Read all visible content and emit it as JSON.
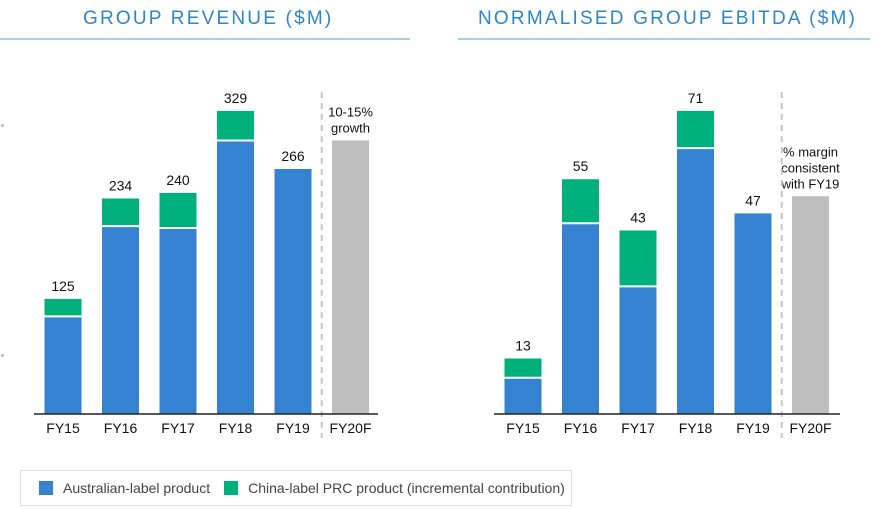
{
  "colors": {
    "australian": "#3482d0",
    "china": "#00b07a",
    "forecast": "#bebebe",
    "title": "#2e86c8",
    "axis": "#222222",
    "divider": "#c8c8c8"
  },
  "legend": {
    "items": [
      {
        "label": "Australian-label product",
        "color": "#3482d0"
      },
      {
        "label": "China-label PRC product (incremental contribution)",
        "color": "#00b07a"
      }
    ]
  },
  "chart_data": [
    {
      "type": "bar",
      "stacked": true,
      "title": "GROUP REVENUE ($M)",
      "categories": [
        "FY15",
        "FY16",
        "FY17",
        "FY18",
        "FY19",
        "FY20F"
      ],
      "series": [
        {
          "name": "Australian-label product",
          "values": [
            106,
            204,
            202,
            297,
            266,
            null
          ]
        },
        {
          "name": "China-label PRC product (incremental contribution)",
          "values": [
            19,
            30,
            38,
            32,
            0,
            null
          ]
        }
      ],
      "totals": [
        125,
        234,
        240,
        329,
        266,
        null
      ],
      "total_labels": [
        "125",
        "234",
        "240",
        "329",
        "266",
        ""
      ],
      "forecast": {
        "category": "FY20F",
        "value": 297,
        "annotation": [
          "10-15%",
          "growth"
        ]
      },
      "ylim": [
        0,
        380
      ],
      "grid": false
    },
    {
      "type": "bar",
      "stacked": true,
      "title": "NORMALISED GROUP EBITDA ($M)",
      "categories": [
        "FY15",
        "FY16",
        "FY17",
        "FY18",
        "FY19",
        "FY20F"
      ],
      "series": [
        {
          "name": "Australian-label product",
          "values": [
            8.5,
            44.7,
            29.9,
            62.3,
            47,
            null
          ]
        },
        {
          "name": "China-label PRC product (incremental contribution)",
          "values": [
            4.5,
            10.3,
            13.1,
            8.7,
            0,
            null
          ]
        }
      ],
      "totals": [
        13,
        55,
        43,
        71,
        47,
        null
      ],
      "total_labels": [
        "13",
        "55",
        "43",
        "71",
        "47",
        ""
      ],
      "forecast": {
        "category": "FY20F",
        "value": 51,
        "annotation": [
          "% margin",
          "consistent",
          "with FY19"
        ]
      },
      "ylim": [
        0,
        82
      ],
      "grid": false
    }
  ]
}
